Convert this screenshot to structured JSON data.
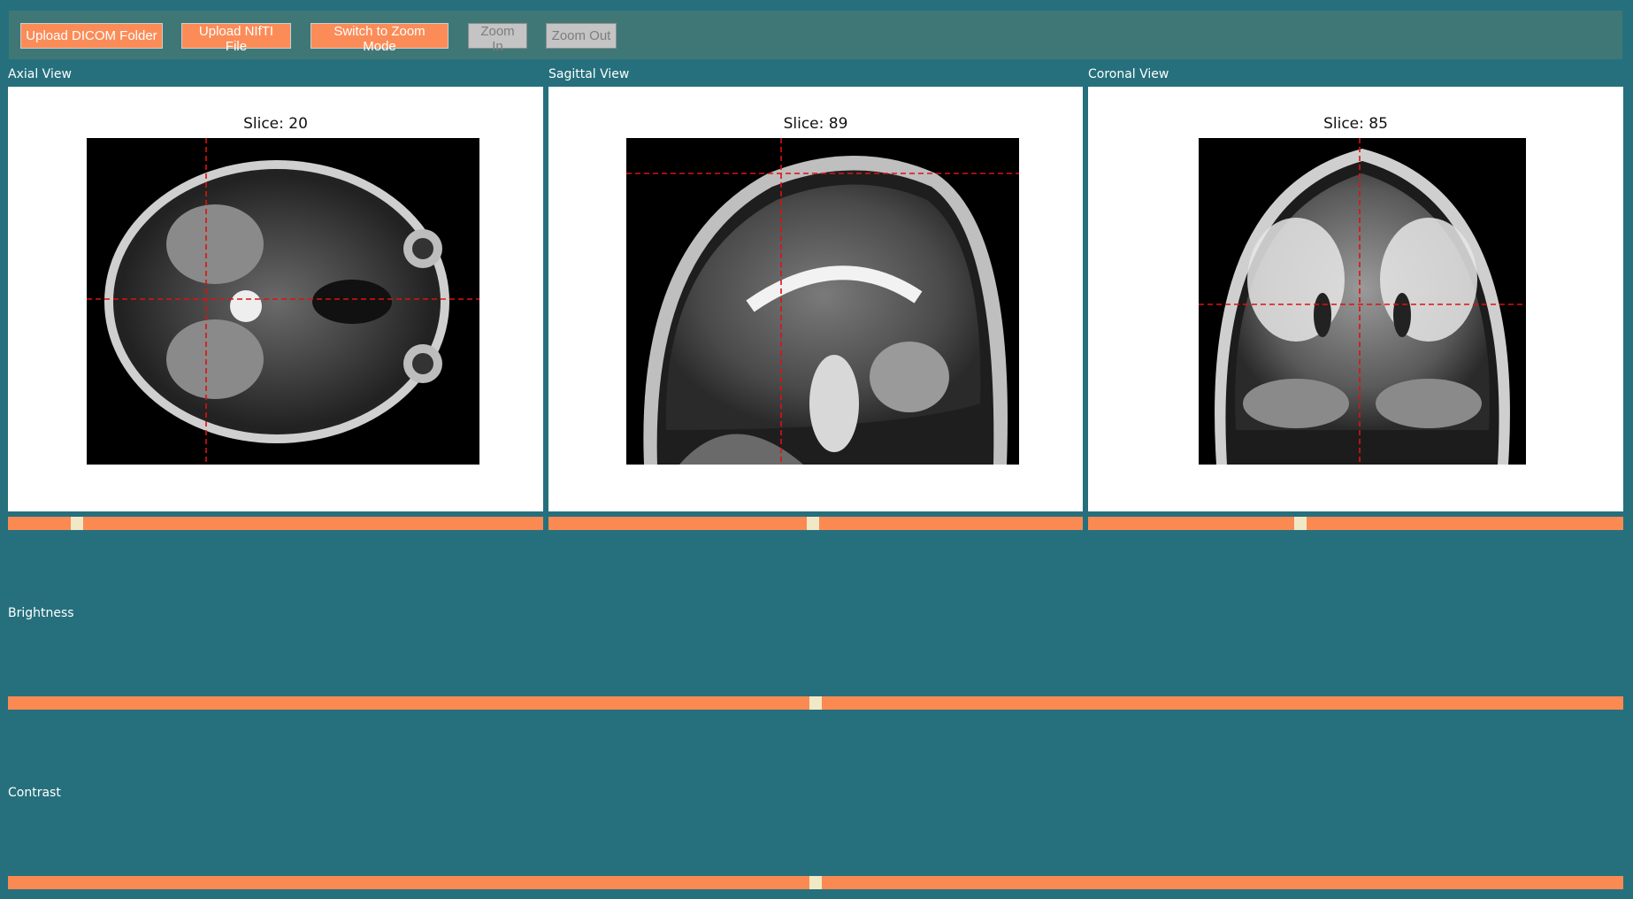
{
  "toolbar": {
    "upload_dicom": "Upload DICOM Folder",
    "upload_nifti": "Upload NIfTI File",
    "switch_zoom": "Switch to Zoom Mode",
    "zoom_in": "Zoom In",
    "zoom_out": "Zoom Out"
  },
  "views": {
    "axial": {
      "title": "Axial View",
      "slice_text": "Slice: 20",
      "slider_fraction": 0.12
    },
    "sagittal": {
      "title": "Sagittal View",
      "slice_text": "Slice: 89",
      "slider_fraction": 0.495
    },
    "coronal": {
      "title": "Coronal View",
      "slice_text": "Slice: 85",
      "slider_fraction": 0.395
    }
  },
  "controls": {
    "brightness": {
      "label": "Brightness",
      "fraction": 0.5
    },
    "contrast": {
      "label": "Contrast",
      "fraction": 0.5
    }
  },
  "colors": {
    "background": "#26707d",
    "toolbar": "#3f7777",
    "accent": "#fb8c58",
    "thumb": "#f1e9c6",
    "crosshair": "#e01010"
  }
}
